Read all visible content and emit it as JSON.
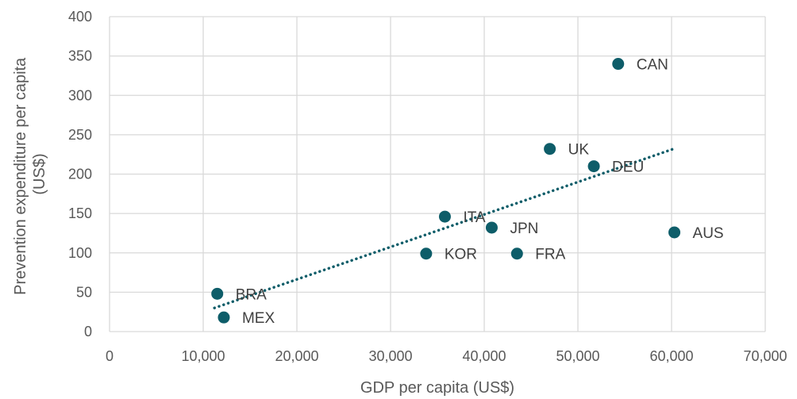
{
  "chart_data": {
    "type": "scatter",
    "title": "",
    "xlabel": "GDP per capita (US$)",
    "ylabel_lines": [
      "Prevention expenditure per capita",
      "(US$)"
    ],
    "xlim": [
      0,
      70000
    ],
    "ylim": [
      0,
      400
    ],
    "xticks": [
      0,
      10000,
      20000,
      30000,
      40000,
      50000,
      60000,
      70000
    ],
    "xtick_labels": [
      "0",
      "10,000",
      "20,000",
      "30,000",
      "40,000",
      "50,000",
      "60,000",
      "70,000"
    ],
    "yticks": [
      0,
      50,
      100,
      150,
      200,
      250,
      300,
      350,
      400
    ],
    "ytick_labels": [
      "0",
      "50",
      "100",
      "150",
      "200",
      "250",
      "300",
      "350",
      "400"
    ],
    "grid": true,
    "marker_color": "#0e5d69",
    "trendline": {
      "type": "linear",
      "style": "dotted",
      "color": "#0e5d69",
      "from": [
        11200,
        30
      ],
      "to": [
        60200,
        232
      ]
    },
    "points": [
      {
        "label": "BRA",
        "x": 11500,
        "y": 48
      },
      {
        "label": "MEX",
        "x": 12200,
        "y": 18
      },
      {
        "label": "KOR",
        "x": 33800,
        "y": 99
      },
      {
        "label": "ITA",
        "x": 35800,
        "y": 146
      },
      {
        "label": "JPN",
        "x": 40800,
        "y": 132
      },
      {
        "label": "FRA",
        "x": 43500,
        "y": 99
      },
      {
        "label": "UK",
        "x": 47000,
        "y": 232
      },
      {
        "label": "DEU",
        "x": 51700,
        "y": 210
      },
      {
        "label": "CAN",
        "x": 54300,
        "y": 340
      },
      {
        "label": "AUS",
        "x": 60300,
        "y": 126
      }
    ]
  }
}
